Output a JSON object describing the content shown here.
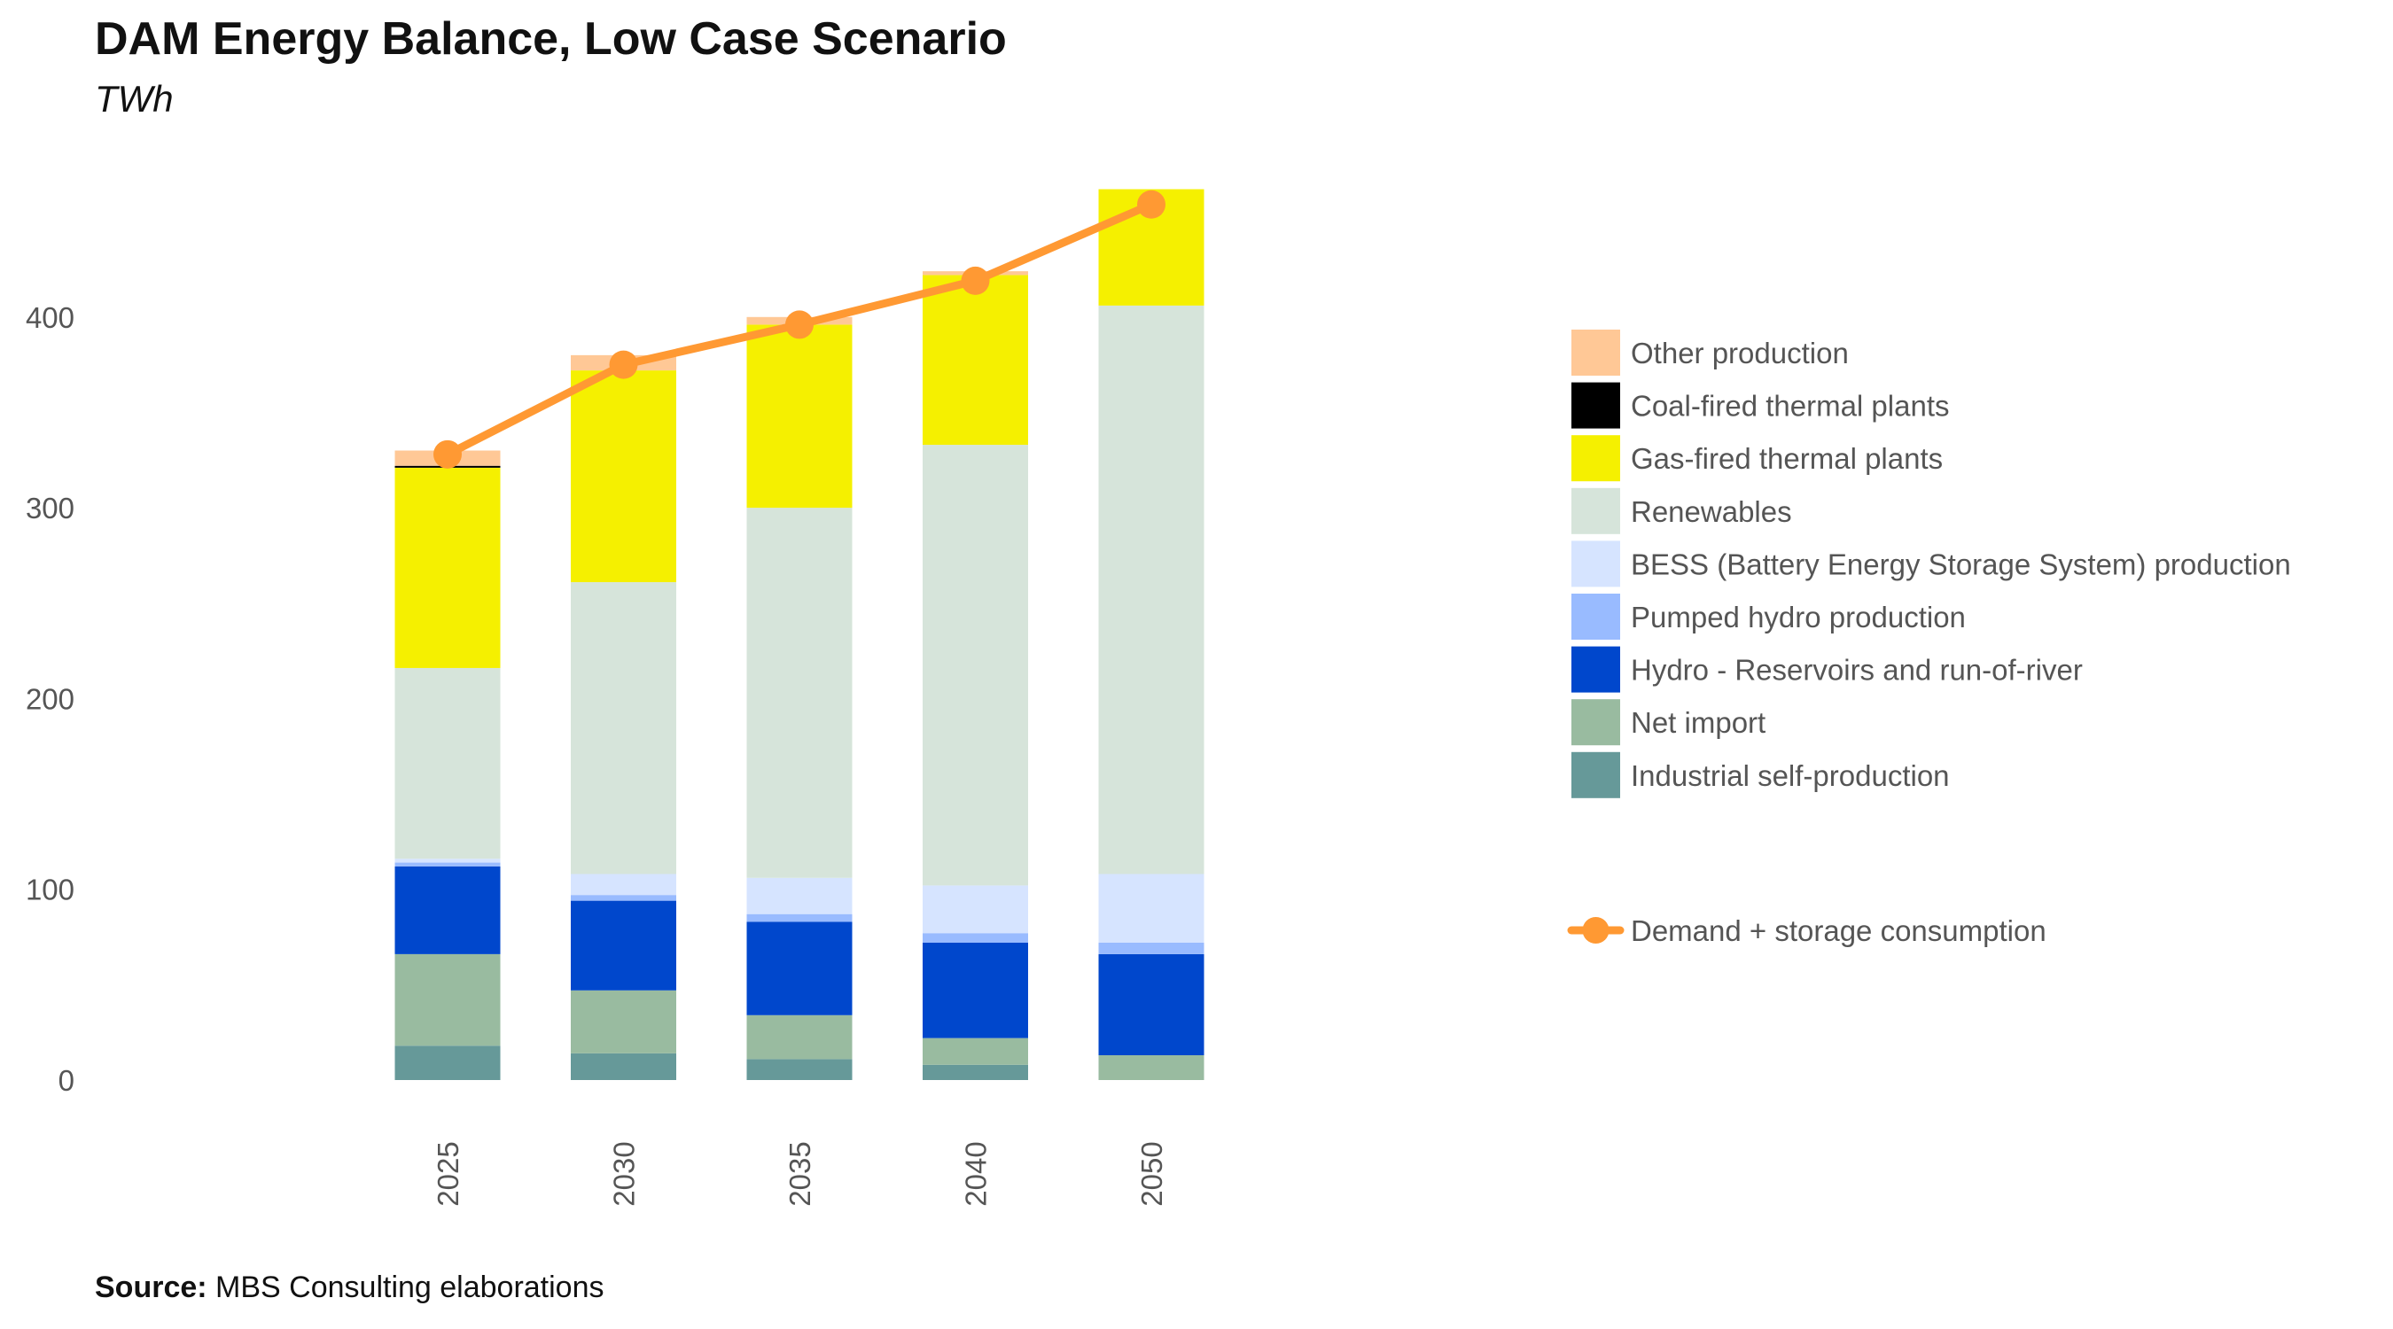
{
  "title": "DAM Energy Balance, Low Case Scenario",
  "subtitle": "TWh",
  "source": {
    "bold": "Source:",
    "text": " MBS Consulting elaborations"
  },
  "chart_data": {
    "type": "bar",
    "stacked": true,
    "title": "DAM Energy Balance, Low Case Scenario",
    "subtitle": "TWh",
    "categories": [
      "2025",
      "2030",
      "2035",
      "2040",
      "2050"
    ],
    "ylim": [
      0,
      468
    ],
    "yticks": [
      0,
      100,
      200,
      300,
      400
    ],
    "grid": false,
    "legend_position": "right",
    "series": [
      {
        "name": "Industrial self-production",
        "color": "#669999",
        "values": [
          18,
          14,
          11,
          8,
          0
        ]
      },
      {
        "name": "Net import",
        "color": "#99BBA0",
        "values": [
          48,
          33,
          23,
          14,
          13
        ]
      },
      {
        "name": "Hydro - Reservoirs and run-of-river",
        "color": "#0047CC",
        "values": [
          46,
          47,
          49,
          50,
          53
        ]
      },
      {
        "name": "Pumped hydro production",
        "color": "#99BBFF",
        "values": [
          2,
          3,
          4,
          5,
          6
        ]
      },
      {
        "name": "BESS (Battery Energy Storage System) production",
        "color": "#D6E4FF",
        "values": [
          2,
          11,
          19,
          25,
          36
        ]
      },
      {
        "name": "Renewables",
        "color": "#D6E4DA",
        "values": [
          100,
          153,
          194,
          231,
          298
        ]
      },
      {
        "name": "Gas-fired thermal plants",
        "color": "#F5F000",
        "values": [
          105,
          111,
          96,
          89,
          61
        ]
      },
      {
        "name": "Coal-fired thermal plants",
        "color": "#000000",
        "values": [
          1,
          0,
          0,
          0,
          0
        ]
      },
      {
        "name": "Other production",
        "color": "#FFC896",
        "values": [
          8,
          8,
          4,
          2,
          0
        ]
      }
    ],
    "line": {
      "name": "Demand + storage consumption",
      "color": "#FF9933",
      "values": [
        328,
        375,
        396,
        419,
        459
      ]
    }
  }
}
